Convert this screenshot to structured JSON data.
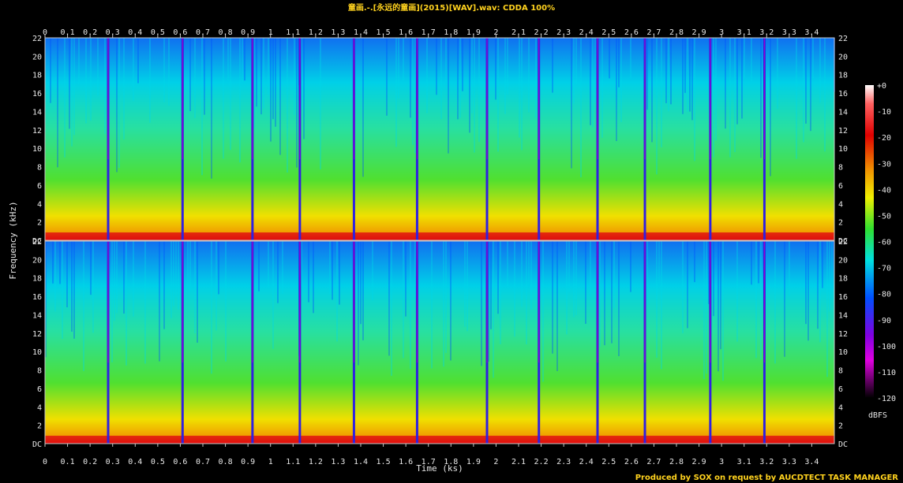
{
  "header": {
    "title": "童画.-.[永远的童画](2015)[WAV].wav: CDDA 100%"
  },
  "footer": {
    "credit": "Produced by SOX on request by AUCDTECT TASK MANAGER"
  },
  "chart_data": {
    "type": "heatmap",
    "title": "童画.-.[永远的童画](2015)[WAV].wav: CDDA 100%",
    "xlabel": "Time (ks)",
    "ylabel": "Frequency (kHz)",
    "colorbar_label": "dBFS",
    "xlim": [
      0,
      3.5
    ],
    "ylim": [
      0,
      22
    ],
    "channels": [
      "upper",
      "lower"
    ],
    "x_ticks": [
      "0",
      "0.1",
      "0.2",
      "0.3",
      "0.4",
      "0.5",
      "0.6",
      "0.7",
      "0.8",
      "0.9",
      "1",
      "1.1",
      "1.2",
      "1.3",
      "1.4",
      "1.5",
      "1.6",
      "1.7",
      "1.8",
      "1.9",
      "2",
      "2.1",
      "2.2",
      "2.3",
      "2.4",
      "2.5",
      "2.6",
      "2.7",
      "2.8",
      "2.9",
      "3",
      "3.1",
      "3.2",
      "3.3",
      "3.4"
    ],
    "y_ticks": [
      "DC",
      "2",
      "4",
      "6",
      "8",
      "10",
      "12",
      "14",
      "16",
      "18",
      "20",
      "22"
    ],
    "colorbar_ticks": [
      "+0",
      "-10",
      "-20",
      "-30",
      "-40",
      "-50",
      "-60",
      "-70",
      "-80",
      "-90",
      "-100",
      "-110",
      "-120"
    ],
    "colorbar_range": [
      -120,
      0
    ],
    "track_boundaries_ks": [
      0.28,
      0.61,
      0.92,
      1.13,
      1.37,
      1.65,
      1.96,
      2.19,
      2.45,
      2.66,
      2.95,
      3.19
    ],
    "colors": {
      "low": "#000000",
      "purple": "#8000c0",
      "blue": "#0040ff",
      "cyan": "#00e0e8",
      "green": "#30e030",
      "yellow": "#f0f000",
      "red": "#e00000",
      "high": "#ffffff"
    }
  }
}
